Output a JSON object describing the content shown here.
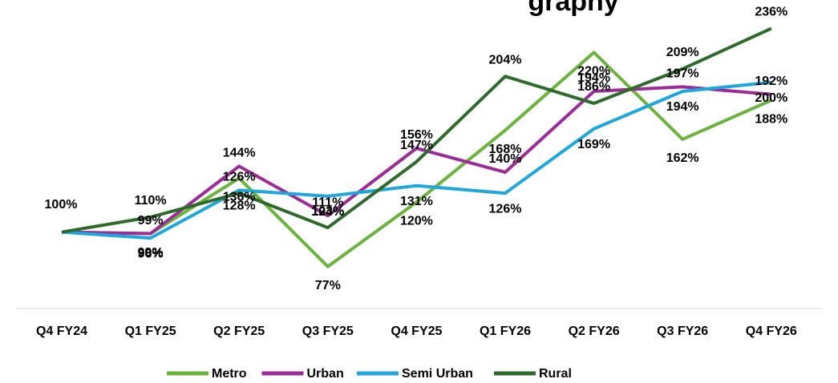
{
  "chart_data": {
    "type": "line",
    "title": "graphy",
    "categories": [
      "Q4 FY24",
      "Q1 FY25",
      "Q2 FY25",
      "Q3 FY25",
      "Q4 FY25",
      "Q1 FY26",
      "Q2 FY26",
      "Q3 FY26",
      "Q4 FY26"
    ],
    "ylim": [
      49,
      255
    ],
    "legend": "bottom",
    "series": [
      {
        "name": "Metro",
        "color": "#6ab43e",
        "values": [
          100,
          99,
          136,
          77,
          120,
          168,
          220,
          162,
          188
        ],
        "value_labels": [
          "100%",
          "99%",
          "136%",
          "77%",
          "120%",
          "168%",
          "220%",
          "162%",
          "188%"
        ]
      },
      {
        "name": "Urban",
        "color": "#9b2c98",
        "values": [
          100,
          99,
          144,
          111,
          156,
          140,
          194,
          197,
          192
        ],
        "value_labels": [
          "100%",
          "99%",
          "144%",
          "111%",
          "156%",
          "140%",
          "194%",
          "197%",
          "192%"
        ]
      },
      {
        "name": "Semi Urban",
        "color": "#1ea7db",
        "values": [
          100,
          96,
          128,
          124,
          131,
          126,
          169,
          194,
          200
        ],
        "value_labels": [
          "100%",
          "96%",
          "128%",
          "124%",
          "131%",
          "126%",
          "169%",
          "194%",
          "200%"
        ]
      },
      {
        "name": "Rural",
        "color": "#2e6b2a",
        "values": [
          100,
          110,
          126,
          103,
          147,
          204,
          186,
          209,
          236
        ],
        "value_labels": [
          "100%",
          "110%",
          "126%",
          "103%",
          "147%",
          "204%",
          "186%",
          "209%",
          "236%"
        ]
      }
    ]
  }
}
